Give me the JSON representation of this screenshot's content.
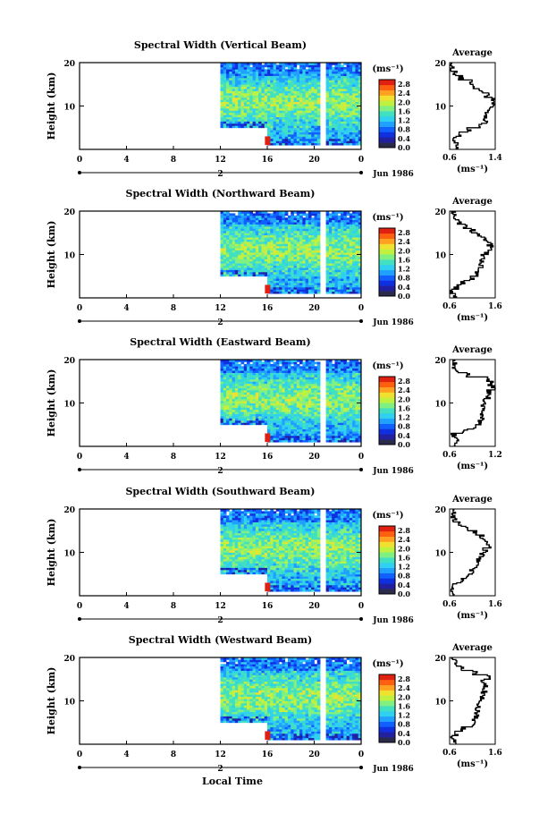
{
  "figure": {
    "xlabel": "Local Time",
    "colorbar_unit": "(ms⁻¹)",
    "avg_title": "Average",
    "avg_xlabel": "(ms⁻¹)",
    "height_label": "Height (km)",
    "date_label": "Jun 1986",
    "day_label": "2"
  },
  "colors": {
    "colorscale": [
      "#2a2a4a",
      "#2020a0",
      "#1030e0",
      "#1060ff",
      "#20a0ff",
      "#30d0f0",
      "#40e0c0",
      "#80f080",
      "#c0f040",
      "#f0e030",
      "#ffa020",
      "#ff6010",
      "#e02010"
    ]
  },
  "chart_data": [
    {
      "type": "heatmap",
      "title": "Spectral Width (Vertical Beam)",
      "x_ticks": [
        "0",
        "4",
        "8",
        "12",
        "16",
        "20",
        "0"
      ],
      "xlim": [
        0,
        24
      ],
      "y_ticks": [
        "20",
        "10"
      ],
      "ylim": [
        0,
        20
      ],
      "colorbar_ticks": [
        "2.8",
        "2.4",
        "2.0",
        "1.6",
        "1.2",
        "0.8",
        "0.4",
        "0.0"
      ],
      "data_start_hour": 12,
      "gap_hours": [
        20.5,
        21
      ],
      "low_cutoff_km": {
        "12-16": 5,
        "16-24": 1
      },
      "average": {
        "xticks": [
          "0.6",
          "1.4"
        ],
        "xlim": [
          0.6,
          1.4
        ],
        "height_km": [
          1,
          2,
          3,
          4,
          5,
          6,
          7,
          8,
          9,
          10,
          11,
          12,
          13,
          14,
          15,
          16,
          17,
          18,
          19,
          20
        ],
        "value": [
          0.7,
          0.72,
          0.68,
          0.8,
          0.95,
          1.15,
          1.22,
          1.25,
          1.27,
          1.32,
          1.38,
          1.35,
          1.25,
          1.15,
          1.05,
          0.95,
          0.8,
          0.7,
          0.66,
          0.65
        ]
      }
    },
    {
      "type": "heatmap",
      "title": "Spectral Width (Northward Beam)",
      "x_ticks": [
        "0",
        "4",
        "8",
        "12",
        "16",
        "20",
        "0"
      ],
      "xlim": [
        0,
        24
      ],
      "y_ticks": [
        "20",
        "10"
      ],
      "ylim": [
        0,
        20
      ],
      "colorbar_ticks": [
        "2.8",
        "2.4",
        "2.0",
        "1.6",
        "1.2",
        "0.8",
        "0.4",
        "0.0"
      ],
      "data_start_hour": 12,
      "gap_hours": [
        20.5,
        21
      ],
      "low_cutoff_km": {
        "12-16": 5,
        "16-24": 1
      },
      "average": {
        "xticks": [
          "0.6",
          "1.6"
        ],
        "xlim": [
          0.6,
          1.6
        ],
        "height_km": [
          1,
          2,
          3,
          4,
          5,
          6,
          7,
          8,
          9,
          10,
          11,
          12,
          13,
          14,
          15,
          16,
          17,
          18,
          19,
          20
        ],
        "value": [
          0.7,
          0.66,
          0.75,
          0.9,
          1.1,
          1.2,
          1.25,
          1.28,
          1.3,
          1.35,
          1.42,
          1.5,
          1.48,
          1.4,
          1.25,
          1.1,
          0.95,
          0.8,
          0.72,
          0.7
        ]
      }
    },
    {
      "type": "heatmap",
      "title": "Spectral Width (Eastward Beam)",
      "x_ticks": [
        "0",
        "4",
        "8",
        "12",
        "16",
        "20",
        "0"
      ],
      "xlim": [
        0,
        24
      ],
      "y_ticks": [
        "20",
        "10"
      ],
      "ylim": [
        0,
        20
      ],
      "colorbar_ticks": [
        "2.8",
        "2.4",
        "2.0",
        "1.6",
        "1.2",
        "0.8",
        "0.4",
        "0.0"
      ],
      "data_start_hour": 12,
      "gap_hours": [
        20.5,
        21
      ],
      "low_cutoff_km": {
        "12-16": 5,
        "16-24": 1
      },
      "average": {
        "xticks": [
          "0.6",
          "1.2"
        ],
        "xlim": [
          0.6,
          1.2
        ],
        "height_km": [
          1,
          2,
          3,
          4,
          5,
          6,
          7,
          8,
          9,
          10,
          11,
          12,
          13,
          14,
          15,
          16,
          17,
          18,
          19,
          20
        ],
        "value": [
          0.68,
          0.7,
          0.65,
          0.8,
          0.95,
          1.0,
          1.02,
          1.03,
          1.04,
          1.05,
          1.07,
          1.1,
          1.12,
          1.18,
          1.14,
          1.1,
          0.85,
          0.7,
          0.65,
          0.66
        ]
      }
    },
    {
      "type": "heatmap",
      "title": "Spectral Width (Southward Beam)",
      "x_ticks": [
        "0",
        "4",
        "8",
        "12",
        "16",
        "20",
        "0"
      ],
      "xlim": [
        0,
        24
      ],
      "y_ticks": [
        "20",
        "10"
      ],
      "ylim": [
        0,
        20
      ],
      "colorbar_ticks": [
        "2.8",
        "2.4",
        "2.0",
        "1.6",
        "1.2",
        "0.8",
        "0.4",
        "0.0"
      ],
      "data_start_hour": 12,
      "gap_hours": [
        20.5,
        21
      ],
      "low_cutoff_km": {
        "12-16": 5,
        "16-24": 1
      },
      "average": {
        "xticks": [
          "0.6",
          "1.6"
        ],
        "xlim": [
          0.6,
          1.6
        ],
        "height_km": [
          1,
          2,
          3,
          4,
          5,
          6,
          7,
          8,
          9,
          10,
          11,
          12,
          13,
          14,
          15,
          16,
          17,
          18,
          19,
          20
        ],
        "value": [
          0.7,
          0.66,
          0.72,
          0.85,
          1.0,
          1.1,
          1.15,
          1.2,
          1.25,
          1.3,
          1.38,
          1.45,
          1.4,
          1.3,
          1.15,
          1.0,
          0.85,
          0.72,
          0.68,
          0.7
        ]
      }
    },
    {
      "type": "heatmap",
      "title": "Spectral Width (Westward Beam)",
      "x_ticks": [
        "0",
        "4",
        "8",
        "12",
        "16",
        "20",
        "0"
      ],
      "xlim": [
        0,
        24
      ],
      "y_ticks": [
        "20",
        "10"
      ],
      "ylim": [
        0,
        20
      ],
      "colorbar_ticks": [
        "2.8",
        "2.4",
        "2.0",
        "1.6",
        "1.2",
        "0.8",
        "0.4",
        "0.0"
      ],
      "data_start_hour": 12,
      "gap_hours": [
        20.5,
        21
      ],
      "low_cutoff_km": {
        "12-16": 5,
        "16-24": 1
      },
      "average": {
        "xticks": [
          "0.6",
          "1.6"
        ],
        "xlim": [
          0.6,
          1.6
        ],
        "height_km": [
          1,
          2,
          3,
          4,
          5,
          6,
          7,
          8,
          9,
          10,
          11,
          12,
          13,
          14,
          15,
          16,
          17,
          18,
          19,
          20
        ],
        "value": [
          0.7,
          0.68,
          0.75,
          0.9,
          1.1,
          1.15,
          1.18,
          1.2,
          1.22,
          1.25,
          1.3,
          1.35,
          1.38,
          1.4,
          1.3,
          1.45,
          1.15,
          0.85,
          0.72,
          0.7
        ]
      }
    }
  ]
}
